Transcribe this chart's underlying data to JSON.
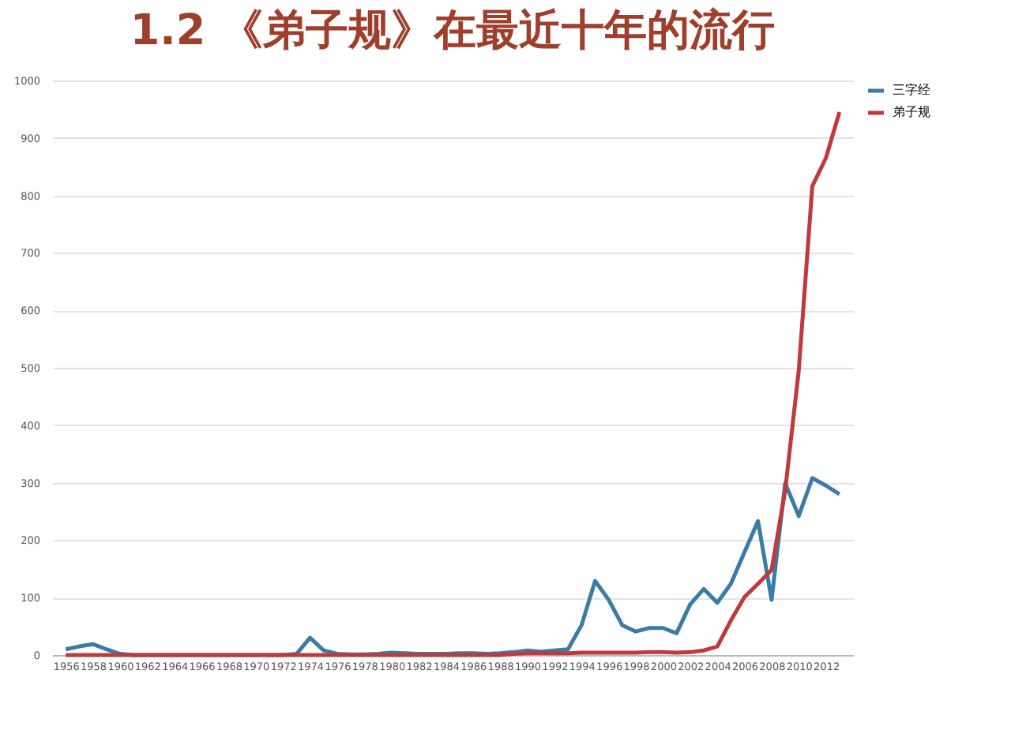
{
  "chart_data": {
    "type": "line",
    "title": "1.2 《弟子规》在最近十年的流行",
    "x": [
      1956,
      1957,
      1958,
      1959,
      1960,
      1961,
      1962,
      1963,
      1964,
      1965,
      1966,
      1967,
      1968,
      1969,
      1970,
      1971,
      1972,
      1973,
      1974,
      1975,
      1976,
      1977,
      1978,
      1979,
      1980,
      1981,
      1982,
      1983,
      1984,
      1985,
      1986,
      1987,
      1988,
      1989,
      1990,
      1991,
      1992,
      1993,
      1994,
      1995,
      1996,
      1997,
      1998,
      1999,
      2000,
      2001,
      2002,
      2003,
      2004,
      2005,
      2006,
      2007,
      2008,
      2009,
      2010,
      2011,
      2012,
      2013
    ],
    "series": [
      {
        "name": "三字经",
        "color": "#3b7ca6",
        "values": [
          10,
          15,
          19,
          10,
          2,
          0,
          0,
          0,
          0,
          0,
          0,
          0,
          0,
          0,
          0,
          0,
          0,
          2,
          30,
          8,
          2,
          1,
          1,
          2,
          4,
          3,
          2,
          2,
          2,
          3,
          3,
          2,
          3,
          5,
          8,
          6,
          8,
          10,
          52,
          129,
          96,
          52,
          41,
          47,
          47,
          38,
          88,
          115,
          91,
          124,
          179,
          233,
          96,
          299,
          242,
          308,
          295,
          280
        ]
      },
      {
        "name": "弟子规",
        "color": "#c0393b",
        "values": [
          0,
          0,
          0,
          0,
          0,
          0,
          0,
          0,
          0,
          0,
          0,
          0,
          0,
          0,
          0,
          0,
          0,
          0,
          0,
          0,
          0,
          0,
          0,
          0,
          0,
          0,
          0,
          0,
          0,
          0,
          0,
          0,
          0,
          2,
          3,
          3,
          3,
          3,
          4,
          4,
          4,
          4,
          4,
          5,
          5,
          4,
          5,
          8,
          15,
          60,
          101,
          124,
          148,
          286,
          495,
          816,
          865,
          945
        ]
      }
    ],
    "xlim": [
      1955,
      2014
    ],
    "xticks": [
      1956,
      1958,
      1960,
      1962,
      1964,
      1966,
      1968,
      1970,
      1972,
      1974,
      1976,
      1978,
      1980,
      1982,
      1984,
      1986,
      1988,
      1990,
      1992,
      1994,
      1996,
      1998,
      2000,
      2002,
      2004,
      2006,
      2008,
      2010,
      2012
    ],
    "ylim": [
      0,
      1000
    ],
    "yticks": [
      0,
      100,
      200,
      300,
      400,
      500,
      600,
      700,
      800,
      900,
      1000
    ],
    "grid": "y",
    "legend": "right",
    "marker": "none",
    "line_style": "solid"
  }
}
